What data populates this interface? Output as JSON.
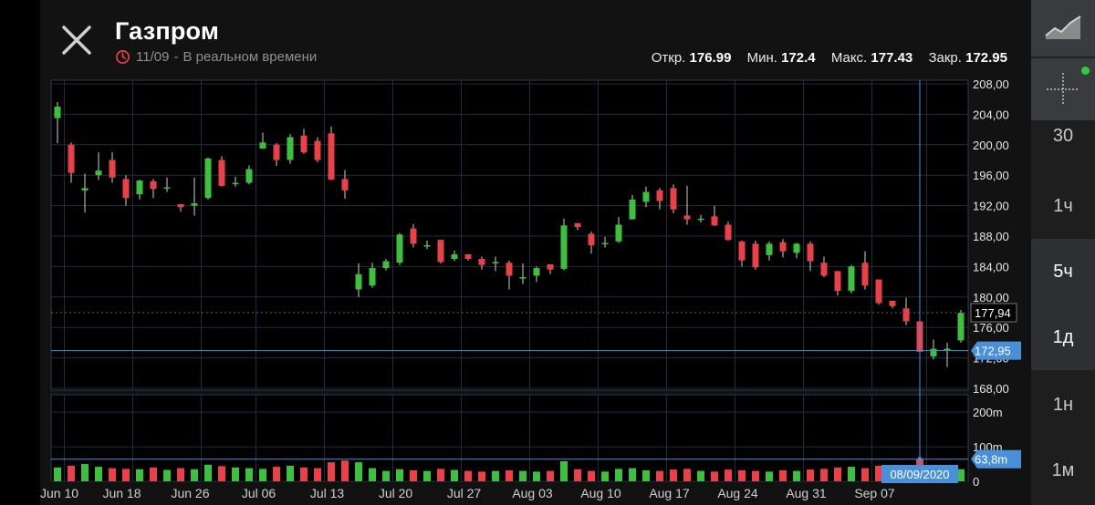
{
  "header": {
    "title": "Газпром",
    "date": "11/09",
    "mode": "В реальном времени",
    "open_label": "Откр.",
    "open_value": "176.99",
    "low_label": "Мин.",
    "low_value": "172.4",
    "high_label": "Макс.",
    "high_value": "177.43",
    "close_label": "Закр.",
    "close_value": "172.95"
  },
  "icons": {
    "close": "close-icon",
    "clock": "clock-icon",
    "chart_type": "area-chart-icon",
    "crosshair": "crosshair-icon"
  },
  "colors": {
    "up": "#3fbf3f",
    "down": "#e8414a",
    "accent": "#4a90d9",
    "live_dot": "#2ecc40"
  },
  "timeframes": [
    {
      "label": "30",
      "active": false
    },
    {
      "label": "1ч",
      "active": false
    },
    {
      "label": "5ч",
      "active": true
    },
    {
      "label": "1д",
      "active": true
    },
    {
      "label": "1н",
      "active": false
    },
    {
      "label": "1м",
      "active": false
    }
  ],
  "chart_data": {
    "type": "candlestick",
    "price_axis": {
      "ticks": [
        "208,00",
        "204,00",
        "200,00",
        "196,00",
        "192,00",
        "188,00",
        "184,00",
        "180,00",
        "176,00",
        "172,00",
        "168,00"
      ],
      "range": [
        168,
        208
      ],
      "last_price_label": "177,94",
      "crosshair_price_label": "172,95"
    },
    "volume_axis": {
      "ticks": [
        "200m",
        "100m",
        "0"
      ],
      "range_m": [
        0,
        240
      ],
      "crosshair_volume_label": "63,8m"
    },
    "x_labels": [
      "Jun 10",
      "Jun 18",
      "Jun 26",
      "Jul 06",
      "Jul 13",
      "Jul 20",
      "Jul 27",
      "Aug 03",
      "Aug 10",
      "Aug 17",
      "Aug 24",
      "Aug 31",
      "Sep 07"
    ],
    "crosshair_date_label": "08/09/2020",
    "candles": [
      {
        "o": 203.5,
        "c": 205.0,
        "h": 205.6,
        "l": 200.2,
        "v": 40
      },
      {
        "o": 200.0,
        "c": 196.3,
        "h": 200.3,
        "l": 195.0,
        "v": 45
      },
      {
        "o": 194.0,
        "c": 194.3,
        "h": 196.2,
        "l": 191.1,
        "v": 50
      },
      {
        "o": 196.0,
        "c": 196.6,
        "h": 199.0,
        "l": 195.4,
        "v": 42
      },
      {
        "o": 198.0,
        "c": 195.7,
        "h": 199.0,
        "l": 195.0,
        "v": 38
      },
      {
        "o": 195.5,
        "c": 193.0,
        "h": 196.0,
        "l": 192.0,
        "v": 36
      },
      {
        "o": 193.5,
        "c": 195.3,
        "h": 195.4,
        "l": 192.8,
        "v": 35
      },
      {
        "o": 195.2,
        "c": 194.2,
        "h": 195.5,
        "l": 193.0,
        "v": 40
      },
      {
        "o": 194.4,
        "c": 194.4,
        "h": 195.7,
        "l": 193.8,
        "v": 33
      },
      {
        "o": 192.2,
        "c": 191.8,
        "h": 192.2,
        "l": 191.2,
        "v": 38
      },
      {
        "o": 192.0,
        "c": 192.3,
        "h": 195.7,
        "l": 190.7,
        "v": 35
      },
      {
        "o": 193.0,
        "c": 198.2,
        "h": 198.3,
        "l": 192.8,
        "v": 48
      },
      {
        "o": 198.0,
        "c": 194.6,
        "h": 198.5,
        "l": 194.5,
        "v": 44
      },
      {
        "o": 195.0,
        "c": 195.0,
        "h": 195.8,
        "l": 194.5,
        "v": 40
      },
      {
        "o": 195.0,
        "c": 196.8,
        "h": 197.3,
        "l": 194.8,
        "v": 38
      },
      {
        "o": 199.5,
        "c": 200.3,
        "h": 201.6,
        "l": 199.5,
        "v": 36
      },
      {
        "o": 200.0,
        "c": 198.0,
        "h": 200.2,
        "l": 197.2,
        "v": 42
      },
      {
        "o": 198.0,
        "c": 201.0,
        "h": 201.4,
        "l": 197.5,
        "v": 45
      },
      {
        "o": 201.2,
        "c": 199.0,
        "h": 202.1,
        "l": 198.8,
        "v": 40
      },
      {
        "o": 200.5,
        "c": 198.0,
        "h": 201.0,
        "l": 197.7,
        "v": 38
      },
      {
        "o": 201.5,
        "c": 195.4,
        "h": 202.4,
        "l": 195.4,
        "v": 55
      },
      {
        "o": 195.5,
        "c": 194.0,
        "h": 196.7,
        "l": 192.9,
        "v": 60
      },
      {
        "o": 181.0,
        "c": 183.0,
        "h": 184.4,
        "l": 180.0,
        "v": 55
      },
      {
        "o": 181.5,
        "c": 183.8,
        "h": 184.5,
        "l": 181.2,
        "v": 38
      },
      {
        "o": 183.8,
        "c": 184.7,
        "h": 185.0,
        "l": 183.5,
        "v": 30
      },
      {
        "o": 184.5,
        "c": 188.2,
        "h": 188.4,
        "l": 184.2,
        "v": 35
      },
      {
        "o": 189.0,
        "c": 187.0,
        "h": 189.6,
        "l": 186.5,
        "v": 32
      },
      {
        "o": 186.8,
        "c": 186.8,
        "h": 187.4,
        "l": 186.3,
        "v": 30
      },
      {
        "o": 187.5,
        "c": 184.6,
        "h": 187.5,
        "l": 184.4,
        "v": 36
      },
      {
        "o": 185.0,
        "c": 185.6,
        "h": 186.1,
        "l": 184.7,
        "v": 33
      },
      {
        "o": 185.6,
        "c": 185.0,
        "h": 185.6,
        "l": 184.8,
        "v": 30
      },
      {
        "o": 185.0,
        "c": 184.2,
        "h": 185.3,
        "l": 183.6,
        "v": 28
      },
      {
        "o": 184.6,
        "c": 184.6,
        "h": 185.3,
        "l": 183.4,
        "v": 30
      },
      {
        "o": 184.5,
        "c": 182.8,
        "h": 184.8,
        "l": 181.0,
        "v": 32
      },
      {
        "o": 182.6,
        "c": 182.6,
        "h": 184.4,
        "l": 181.7,
        "v": 30
      },
      {
        "o": 182.8,
        "c": 183.8,
        "h": 184.0,
        "l": 182.0,
        "v": 28
      },
      {
        "o": 184.3,
        "c": 183.6,
        "h": 184.3,
        "l": 183.0,
        "v": 30
      },
      {
        "o": 183.7,
        "c": 189.4,
        "h": 190.3,
        "l": 183.5,
        "v": 58
      },
      {
        "o": 189.7,
        "c": 189.2,
        "h": 189.7,
        "l": 188.8,
        "v": 35
      },
      {
        "o": 188.3,
        "c": 186.8,
        "h": 188.6,
        "l": 185.7,
        "v": 30
      },
      {
        "o": 187.0,
        "c": 187.1,
        "h": 187.9,
        "l": 186.5,
        "v": 28
      },
      {
        "o": 187.3,
        "c": 189.5,
        "h": 190.5,
        "l": 187.1,
        "v": 36
      },
      {
        "o": 190.2,
        "c": 192.8,
        "h": 193.4,
        "l": 190.2,
        "v": 38
      },
      {
        "o": 192.5,
        "c": 193.8,
        "h": 194.5,
        "l": 191.8,
        "v": 32
      },
      {
        "o": 194.0,
        "c": 192.6,
        "h": 194.3,
        "l": 191.5,
        "v": 30
      },
      {
        "o": 194.3,
        "c": 191.5,
        "h": 194.8,
        "l": 191.0,
        "v": 34
      },
      {
        "o": 190.7,
        "c": 190.2,
        "h": 194.6,
        "l": 189.5,
        "v": 36
      },
      {
        "o": 190.3,
        "c": 190.3,
        "h": 190.8,
        "l": 189.8,
        "v": 30
      },
      {
        "o": 190.6,
        "c": 189.4,
        "h": 192.0,
        "l": 189.3,
        "v": 28
      },
      {
        "o": 189.5,
        "c": 187.5,
        "h": 189.9,
        "l": 187.4,
        "v": 34
      },
      {
        "o": 187.3,
        "c": 184.8,
        "h": 187.4,
        "l": 184.0,
        "v": 32
      },
      {
        "o": 187.0,
        "c": 183.9,
        "h": 187.4,
        "l": 183.6,
        "v": 30
      },
      {
        "o": 185.5,
        "c": 187.0,
        "h": 187.3,
        "l": 184.8,
        "v": 28
      },
      {
        "o": 187.2,
        "c": 186.0,
        "h": 187.6,
        "l": 185.2,
        "v": 32
      },
      {
        "o": 185.8,
        "c": 187.0,
        "h": 187.1,
        "l": 185.1,
        "v": 30
      },
      {
        "o": 187.0,
        "c": 184.7,
        "h": 187.3,
        "l": 183.4,
        "v": 34
      },
      {
        "o": 184.5,
        "c": 182.8,
        "h": 185.3,
        "l": 182.6,
        "v": 36
      },
      {
        "o": 183.4,
        "c": 180.8,
        "h": 183.4,
        "l": 180.2,
        "v": 40
      },
      {
        "o": 180.8,
        "c": 184.0,
        "h": 184.2,
        "l": 180.5,
        "v": 42
      },
      {
        "o": 184.5,
        "c": 181.5,
        "h": 186.0,
        "l": 181.0,
        "v": 38
      },
      {
        "o": 182.3,
        "c": 179.2,
        "h": 182.3,
        "l": 179.0,
        "v": 45
      },
      {
        "o": 179.5,
        "c": 178.8,
        "h": 179.5,
        "l": 178.5,
        "v": 40
      },
      {
        "o": 178.5,
        "c": 176.8,
        "h": 179.9,
        "l": 176.3,
        "v": 44
      },
      {
        "o": 176.8,
        "c": 172.8,
        "h": 176.8,
        "l": 172.4,
        "v": 64
      },
      {
        "o": 172.2,
        "c": 173.2,
        "h": 174.4,
        "l": 171.8,
        "v": 40
      },
      {
        "o": 173.2,
        "c": 173.2,
        "h": 174.0,
        "l": 170.8,
        "v": 38
      },
      {
        "o": 174.3,
        "c": 177.9,
        "h": 178.3,
        "l": 174.0,
        "v": 35
      }
    ]
  }
}
